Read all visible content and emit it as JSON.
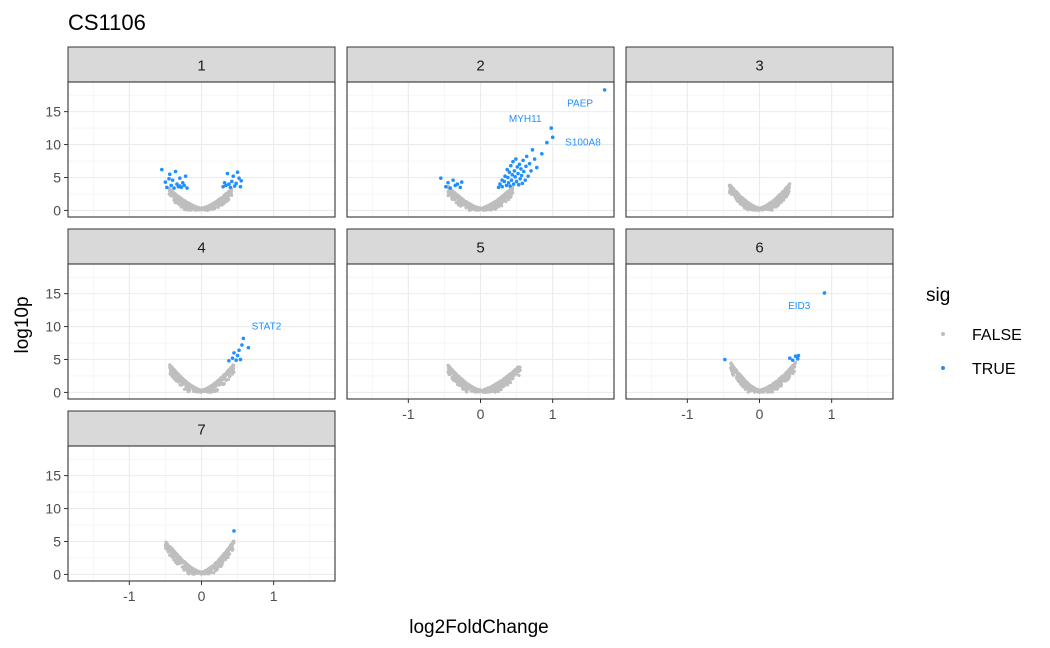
{
  "chart_data": {
    "type": "scatter",
    "title": "CS1106",
    "xlabel": "log2FoldChange",
    "ylabel": "log10p",
    "xlim": [
      -1.85,
      1.85
    ],
    "ylim": [
      -1,
      19.5
    ],
    "x_ticks": [
      -1,
      0,
      1
    ],
    "y_ticks": [
      0,
      5,
      10,
      15
    ],
    "grid": true,
    "legend": {
      "title": "sig",
      "position": "right",
      "entries": [
        {
          "label": "FALSE",
          "color": "#bebebe"
        },
        {
          "label": "TRUE",
          "color": "#1e90ff"
        }
      ]
    },
    "colors": {
      "not_significant": "#bebebe",
      "significant": "#1e90ff",
      "strip_fill": "#d9d9d9"
    },
    "panels": [
      {
        "label": "1",
        "nonsig_envelope": {
          "x_range": [
            -0.45,
            0.42
          ],
          "max_log10p": 3.0
        },
        "sig_points": [
          {
            "x": -0.55,
            "y": 6.2
          },
          {
            "x": -0.5,
            "y": 4.3
          },
          {
            "x": -0.48,
            "y": 3.5
          },
          {
            "x": -0.44,
            "y": 5.5
          },
          {
            "x": -0.42,
            "y": 3.8
          },
          {
            "x": -0.4,
            "y": 4.6
          },
          {
            "x": -0.38,
            "y": 3.4
          },
          {
            "x": -0.36,
            "y": 5.9
          },
          {
            "x": -0.34,
            "y": 4.0
          },
          {
            "x": -0.32,
            "y": 3.6
          },
          {
            "x": -0.3,
            "y": 4.9
          },
          {
            "x": -0.28,
            "y": 3.5
          },
          {
            "x": -0.26,
            "y": 4.2
          },
          {
            "x": -0.24,
            "y": 3.8
          },
          {
            "x": -0.22,
            "y": 5.2
          },
          {
            "x": -0.2,
            "y": 3.4
          },
          {
            "x": -0.3,
            "y": 3.7
          },
          {
            "x": -0.45,
            "y": 4.8
          },
          {
            "x": 0.3,
            "y": 3.6
          },
          {
            "x": 0.32,
            "y": 4.2
          },
          {
            "x": 0.34,
            "y": 3.8
          },
          {
            "x": 0.36,
            "y": 5.6
          },
          {
            "x": 0.38,
            "y": 4.0
          },
          {
            "x": 0.4,
            "y": 3.5
          },
          {
            "x": 0.42,
            "y": 4.4
          },
          {
            "x": 0.44,
            "y": 5.2
          },
          {
            "x": 0.46,
            "y": 3.7
          },
          {
            "x": 0.48,
            "y": 4.1
          },
          {
            "x": 0.5,
            "y": 5.8
          },
          {
            "x": 0.52,
            "y": 4.9
          },
          {
            "x": 0.54,
            "y": 3.6
          },
          {
            "x": 0.55,
            "y": 4.5
          }
        ],
        "labels": []
      },
      {
        "label": "2",
        "nonsig_envelope": {
          "x_range": [
            -0.45,
            0.45
          ],
          "max_log10p": 3.3
        },
        "sig_points": [
          {
            "x": -0.55,
            "y": 4.9
          },
          {
            "x": -0.48,
            "y": 3.6
          },
          {
            "x": -0.45,
            "y": 4.2
          },
          {
            "x": -0.42,
            "y": 3.4
          },
          {
            "x": -0.38,
            "y": 4.6
          },
          {
            "x": -0.35,
            "y": 3.8
          },
          {
            "x": -0.32,
            "y": 4.0
          },
          {
            "x": -0.28,
            "y": 3.5
          },
          {
            "x": -0.26,
            "y": 4.3
          },
          {
            "x": 0.25,
            "y": 3.5
          },
          {
            "x": 0.27,
            "y": 4.0
          },
          {
            "x": 0.3,
            "y": 3.6
          },
          {
            "x": 0.3,
            "y": 4.6
          },
          {
            "x": 0.33,
            "y": 4.4
          },
          {
            "x": 0.34,
            "y": 5.2
          },
          {
            "x": 0.36,
            "y": 3.8
          },
          {
            "x": 0.37,
            "y": 6.2
          },
          {
            "x": 0.38,
            "y": 5.0
          },
          {
            "x": 0.39,
            "y": 4.2
          },
          {
            "x": 0.4,
            "y": 5.8
          },
          {
            "x": 0.41,
            "y": 3.7
          },
          {
            "x": 0.42,
            "y": 6.8
          },
          {
            "x": 0.43,
            "y": 4.6
          },
          {
            "x": 0.44,
            "y": 5.4
          },
          {
            "x": 0.45,
            "y": 7.4
          },
          {
            "x": 0.46,
            "y": 4.0
          },
          {
            "x": 0.47,
            "y": 6.0
          },
          {
            "x": 0.48,
            "y": 5.1
          },
          {
            "x": 0.49,
            "y": 7.8
          },
          {
            "x": 0.5,
            "y": 4.4
          },
          {
            "x": 0.51,
            "y": 6.6
          },
          {
            "x": 0.52,
            "y": 5.6
          },
          {
            "x": 0.53,
            "y": 3.9
          },
          {
            "x": 0.54,
            "y": 7.0
          },
          {
            "x": 0.55,
            "y": 4.8
          },
          {
            "x": 0.56,
            "y": 6.3
          },
          {
            "x": 0.57,
            "y": 5.3
          },
          {
            "x": 0.58,
            "y": 4.1
          },
          {
            "x": 0.59,
            "y": 7.6
          },
          {
            "x": 0.6,
            "y": 5.9
          },
          {
            "x": 0.62,
            "y": 4.6
          },
          {
            "x": 0.63,
            "y": 6.7
          },
          {
            "x": 0.64,
            "y": 8.2
          },
          {
            "x": 0.66,
            "y": 5.2
          },
          {
            "x": 0.68,
            "y": 7.1
          },
          {
            "x": 0.7,
            "y": 6.0
          },
          {
            "x": 0.72,
            "y": 9.2
          },
          {
            "x": 0.75,
            "y": 7.8
          },
          {
            "x": 0.78,
            "y": 6.5
          },
          {
            "x": 0.85,
            "y": 8.6
          },
          {
            "x": 0.92,
            "y": 10.3
          },
          {
            "x": 0.98,
            "y": 12.5
          },
          {
            "x": 1.0,
            "y": 11.1
          },
          {
            "x": 1.72,
            "y": 18.3
          }
        ],
        "labels": [
          {
            "text": "PAEP",
            "x": 1.72,
            "y": 18.3,
            "lx": 1.38,
            "ly": 16.2
          },
          {
            "text": "MYH11",
            "x": 0.98,
            "y": 12.5,
            "lx": 0.62,
            "ly": 13.9
          },
          {
            "text": "S100A8",
            "x": 1.0,
            "y": 11.1,
            "lx": 1.42,
            "ly": 10.3
          }
        ]
      },
      {
        "label": "3",
        "nonsig_envelope": {
          "x_range": [
            -0.42,
            0.42
          ],
          "max_log10p": 3.7
        },
        "sig_points": [],
        "labels": []
      },
      {
        "label": "4",
        "nonsig_envelope": {
          "x_range": [
            -0.45,
            0.45
          ],
          "max_log10p": 4.0
        },
        "sig_points": [
          {
            "x": 0.38,
            "y": 4.8
          },
          {
            "x": 0.43,
            "y": 5.2
          },
          {
            "x": 0.45,
            "y": 6.0
          },
          {
            "x": 0.48,
            "y": 4.9
          },
          {
            "x": 0.5,
            "y": 5.6
          },
          {
            "x": 0.52,
            "y": 6.4
          },
          {
            "x": 0.54,
            "y": 5.0
          },
          {
            "x": 0.56,
            "y": 7.2
          },
          {
            "x": 0.58,
            "y": 8.2
          },
          {
            "x": 0.65,
            "y": 6.8
          }
        ],
        "labels": [
          {
            "text": "STAT2",
            "x": 0.58,
            "y": 8.2,
            "lx": 0.9,
            "ly": 10.0
          }
        ]
      },
      {
        "label": "5",
        "nonsig_envelope": {
          "x_range": [
            -0.45,
            0.55
          ],
          "max_log10p": 3.8
        },
        "sig_points": [],
        "labels": []
      },
      {
        "label": "6",
        "nonsig_envelope": {
          "x_range": [
            -0.4,
            0.5
          ],
          "max_log10p": 4.2
        },
        "sig_points": [
          {
            "x": -0.48,
            "y": 5.0
          },
          {
            "x": 0.42,
            "y": 5.2
          },
          {
            "x": 0.46,
            "y": 4.9
          },
          {
            "x": 0.5,
            "y": 5.5
          },
          {
            "x": 0.53,
            "y": 5.1
          },
          {
            "x": 0.54,
            "y": 5.6
          },
          {
            "x": 0.9,
            "y": 15.1
          }
        ],
        "labels": [
          {
            "text": "EID3",
            "x": 0.9,
            "y": 15.1,
            "lx": 0.55,
            "ly": 13.1
          }
        ]
      },
      {
        "label": "7",
        "nonsig_envelope": {
          "x_range": [
            -0.5,
            0.45
          ],
          "max_log10p": 4.8
        },
        "sig_points": [
          {
            "x": 0.45,
            "y": 6.6
          }
        ],
        "labels": []
      }
    ]
  }
}
